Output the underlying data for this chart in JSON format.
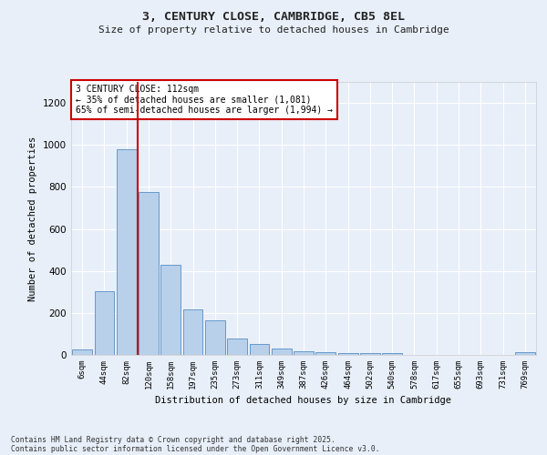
{
  "title1": "3, CENTURY CLOSE, CAMBRIDGE, CB5 8EL",
  "title2": "Size of property relative to detached houses in Cambridge",
  "xlabel": "Distribution of detached houses by size in Cambridge",
  "ylabel": "Number of detached properties",
  "categories": [
    "6sqm",
    "44sqm",
    "82sqm",
    "120sqm",
    "158sqm",
    "197sqm",
    "235sqm",
    "273sqm",
    "311sqm",
    "349sqm",
    "387sqm",
    "426sqm",
    "464sqm",
    "502sqm",
    "540sqm",
    "578sqm",
    "617sqm",
    "655sqm",
    "693sqm",
    "731sqm",
    "769sqm"
  ],
  "values": [
    25,
    305,
    980,
    775,
    430,
    215,
    165,
    80,
    50,
    30,
    18,
    12,
    8,
    8,
    8,
    1,
    0,
    0,
    1,
    0,
    12
  ],
  "bar_color": "#b8d0ea",
  "bar_edge_color": "#6699cc",
  "bg_color": "#e8eff9",
  "vline_color": "#cc0000",
  "annotation_text": "3 CENTURY CLOSE: 112sqm\n← 35% of detached houses are smaller (1,081)\n65% of semi-detached houses are larger (1,994) →",
  "annotation_box_color": "white",
  "annotation_box_edge": "#cc0000",
  "ylim": [
    0,
    1300
  ],
  "yticks": [
    0,
    200,
    400,
    600,
    800,
    1000,
    1200
  ],
  "footer1": "Contains HM Land Registry data © Crown copyright and database right 2025.",
  "footer2": "Contains public sector information licensed under the Open Government Licence v3.0.",
  "vline_idx": 2.5
}
